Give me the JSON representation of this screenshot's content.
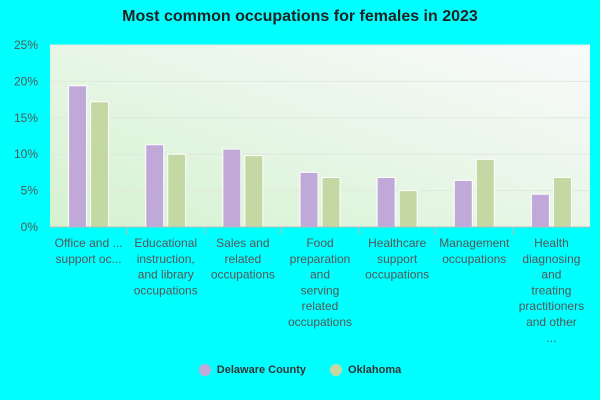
{
  "chart_data": {
    "type": "bar",
    "title": "Most common occupations for females in 2023",
    "xlabel": "",
    "ylabel": "",
    "ylim": [
      0,
      25
    ],
    "yticks": [
      "0%",
      "5%",
      "10%",
      "15%",
      "20%",
      "25%"
    ],
    "ytick_values": [
      0,
      5,
      10,
      15,
      20,
      25
    ],
    "grid": true,
    "legend_position": "bottom",
    "categories": [
      [
        "Office and ...",
        "support oc..."
      ],
      [
        "Educational",
        "instruction,",
        "and library",
        "occupations"
      ],
      [
        "Sales and",
        "related",
        "occupations"
      ],
      [
        "Food",
        "preparation",
        "and",
        "serving",
        "related",
        "occupations"
      ],
      [
        "Healthcare",
        "support",
        "occupations"
      ],
      [
        "Management",
        "occupations"
      ],
      [
        "Health",
        "diagnosing",
        "and",
        "treating",
        "practitioners",
        "and other",
        "..."
      ]
    ],
    "series": [
      {
        "name": "Delaware County",
        "color": "#c0a9d8",
        "values": [
          19.4,
          11.3,
          10.7,
          7.5,
          6.8,
          6.4,
          4.5
        ]
      },
      {
        "name": "Oklahoma",
        "color": "#c4d8a4",
        "values": [
          17.2,
          10.0,
          9.8,
          6.8,
          5.0,
          9.3,
          6.8
        ]
      }
    ]
  }
}
